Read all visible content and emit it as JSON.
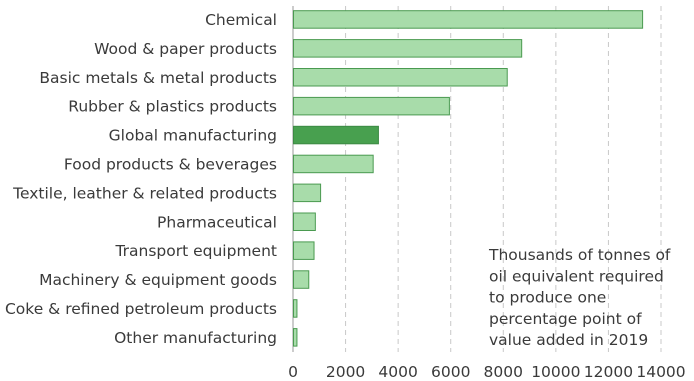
{
  "chart_data": {
    "type": "bar",
    "orientation": "horizontal",
    "categories": [
      "Chemical",
      "Wood & paper products",
      "Basic metals & metal products",
      "Rubber & plastics products",
      "Global manufacturing",
      "Food products & beverages",
      "Textile, leather & related products",
      "Pharmaceutical",
      "Transport equipment",
      "Machinery & equipment goods",
      "Coke & refined petroleum products",
      "Other manufacturing"
    ],
    "values": [
      13300,
      8700,
      8150,
      5950,
      3250,
      3050,
      1050,
      850,
      800,
      600,
      150,
      150
    ],
    "highlight": "Global manufacturing",
    "colors": {
      "bar_fill": "#a8dcaa",
      "bar_stroke": "#4a9a50",
      "highlight_fill": "#48a04f",
      "highlight_stroke": "#3d8a44",
      "grid": "#c8c8c8",
      "text": "#3a3a3a"
    },
    "xlim": [
      0,
      14000
    ],
    "xticks": [
      0,
      2000,
      4000,
      6000,
      8000,
      10000,
      12000,
      14000
    ],
    "tick_labels": [
      "0",
      "2000",
      "4000",
      "6000",
      "8000",
      "10000",
      "12000",
      "14000"
    ],
    "grid": "vertical dashed",
    "annotation": [
      "Thousands of tonnes of",
      "oil equivalent required",
      "to produce one",
      "percentage point of",
      "value added in 2019"
    ]
  }
}
